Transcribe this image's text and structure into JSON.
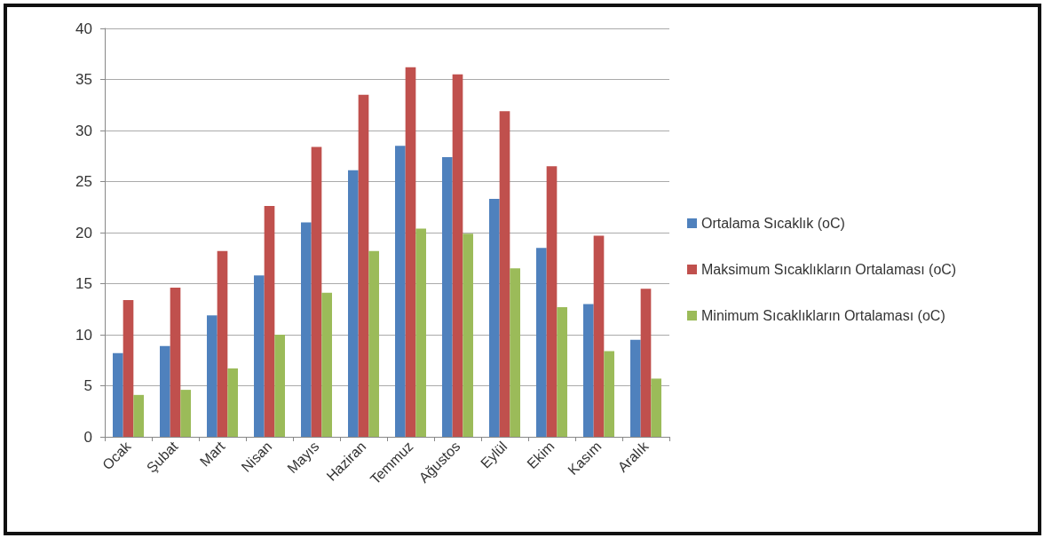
{
  "chart_data": {
    "type": "bar",
    "categories": [
      "Ocak",
      "Şubat",
      "Mart",
      "Nisan",
      "Mayıs",
      "Haziran",
      "Temmuz",
      "Ağustos",
      "Eylül",
      "Ekim",
      "Kasım",
      "Aralık"
    ],
    "series": [
      {
        "name": "Ortalama Sıcaklık (oC)",
        "color": "#4f81bd",
        "values": [
          8.2,
          8.9,
          11.9,
          15.8,
          21.0,
          26.1,
          28.5,
          27.4,
          23.3,
          18.5,
          13.0,
          9.5
        ]
      },
      {
        "name": "Maksimum Sıcaklıkların Ortalaması (oC)",
        "color": "#c0504d",
        "values": [
          13.4,
          14.6,
          18.2,
          22.6,
          28.4,
          33.5,
          36.2,
          35.5,
          31.9,
          26.5,
          19.7,
          14.5
        ]
      },
      {
        "name": "Minimum Sıcaklıkların Ortalaması (oC)",
        "color": "#9bbb59",
        "values": [
          4.1,
          4.6,
          6.7,
          10.0,
          14.1,
          18.2,
          20.4,
          19.9,
          16.5,
          12.7,
          8.4,
          5.7
        ]
      }
    ],
    "ylim": [
      0,
      40
    ],
    "yticks": [
      0,
      5,
      10,
      15,
      20,
      25,
      30,
      35,
      40
    ],
    "grid": "y",
    "legend": "right"
  }
}
